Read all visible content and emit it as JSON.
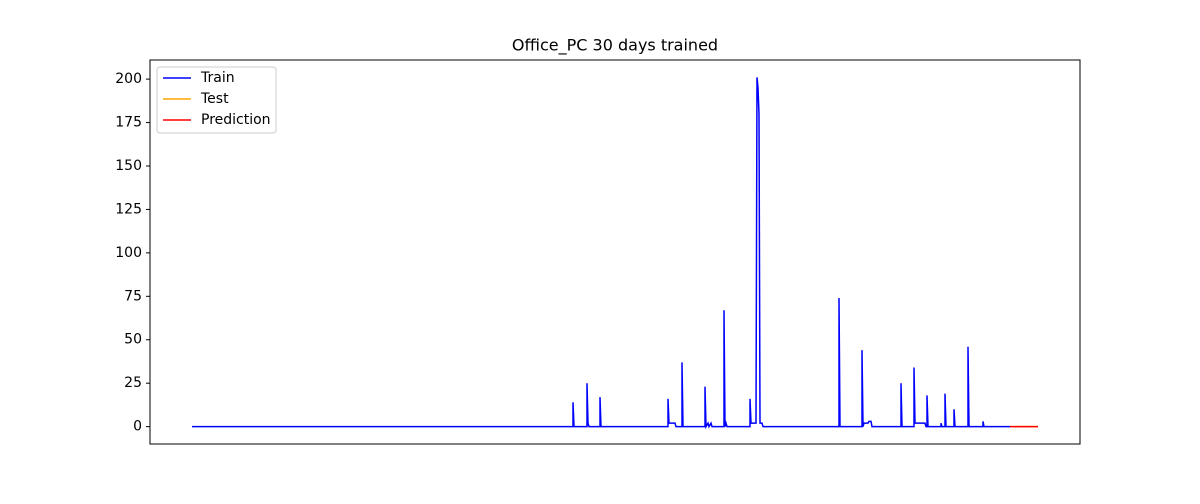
{
  "chart_data": {
    "type": "line",
    "title": "Office_PC 30 days trained",
    "xlim": [
      -42,
      888
    ],
    "ylim": [
      -10,
      211
    ],
    "yticks": [
      0,
      25,
      50,
      75,
      100,
      125,
      150,
      175,
      200
    ],
    "legend": "upper left",
    "series": [
      {
        "name": "Train",
        "color": "#0000ff",
        "x": [
          0,
          381,
          381,
          382,
          395,
          395,
          396,
          397,
          408,
          408,
          409,
          476,
          476,
          477,
          483,
          484,
          490,
          490,
          491,
          513,
          513,
          514,
          516,
          517,
          519,
          520,
          532,
          532,
          533,
          534,
          535,
          558,
          558,
          559,
          564,
          565,
          566,
          567,
          568,
          570,
          571,
          647,
          647,
          648,
          670,
          670,
          671,
          672,
          676,
          677,
          679,
          680,
          709,
          709,
          710,
          722,
          722,
          723,
          733,
          734,
          735,
          735,
          736,
          749,
          749,
          750,
          753,
          753,
          754,
          762,
          762,
          763,
          776,
          776,
          777,
          791,
          791,
          792,
          818
        ],
        "values": [
          0,
          0,
          14,
          0,
          0,
          25,
          2,
          0,
          0,
          17,
          0,
          0,
          16,
          2,
          2,
          0,
          0,
          37,
          0,
          0,
          23,
          0,
          2,
          0,
          2,
          0,
          0,
          67,
          0,
          2,
          0,
          0,
          16,
          2,
          2,
          201,
          195,
          180,
          2,
          2,
          0,
          0,
          74,
          0,
          0,
          44,
          0,
          2,
          2,
          3,
          3,
          0,
          0,
          25,
          0,
          0,
          34,
          2,
          2,
          0,
          0,
          18,
          0,
          0,
          2,
          0,
          0,
          19,
          0,
          0,
          10,
          0,
          0,
          46,
          0,
          0,
          3,
          0,
          0
        ]
      },
      {
        "name": "Test",
        "color": "#ffa500",
        "x": [
          818,
          846
        ],
        "values": [
          0,
          0
        ]
      },
      {
        "name": "Prediction",
        "color": "#ff0000",
        "x": [
          818,
          846
        ],
        "values": [
          0,
          0
        ]
      }
    ]
  }
}
